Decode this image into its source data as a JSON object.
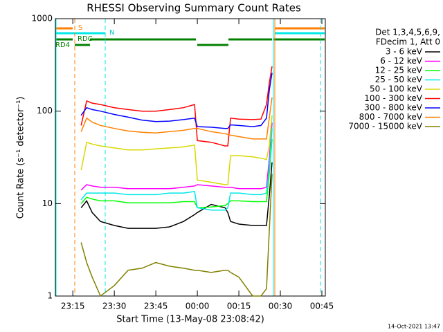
{
  "chart_data": {
    "type": "line",
    "title": "RHESSI Observing Summary Count Rates",
    "x_label": "Start Time (13-May-08 23:08:42)",
    "y_label": "Count Rate (s⁻¹ detector⁻¹)",
    "legend_title": [
      "Det 1,3,4,5,6,9,",
      "FDecim 1, Att 0"
    ],
    "flags": [
      "S",
      "N",
      "RDC",
      "RD4"
    ],
    "footer": "14-Oct-2021 13:47",
    "log_y": true,
    "xlim": [
      "23:08:42",
      "00:46:15"
    ],
    "xticks": [
      "23:15",
      "23:30",
      "23:45",
      "00:00",
      "00:15",
      "00:30",
      "00:45"
    ],
    "ylim": [
      1,
      1000
    ],
    "yticks": [
      1,
      10,
      100,
      1000
    ],
    "x": [
      "23:18",
      "23:20",
      "23:22",
      "23:25",
      "23:30",
      "23:35",
      "23:40",
      "23:45",
      "23:50",
      "23:55",
      "23:59",
      "00:00",
      "00:05",
      "00:10",
      "00:11",
      "00:12",
      "00:15",
      "00:20",
      "00:23",
      "00:25",
      "00:26",
      "00:27"
    ],
    "series": [
      {
        "name": "3 - 6 keV",
        "color": "#000000",
        "values": [
          9,
          10.7,
          8,
          6.4,
          5.8,
          5.4,
          5.4,
          5.4,
          5.6,
          6.4,
          7.6,
          8,
          9.8,
          9,
          8,
          6.4,
          6,
          5.8,
          5.8,
          5.8,
          12,
          28
        ]
      },
      {
        "name": "6 - 12 keV",
        "color": "#ff00ff",
        "values": [
          14,
          16,
          15.5,
          15,
          15,
          14.5,
          14.5,
          14.5,
          14.5,
          15,
          15.5,
          16,
          15.5,
          15,
          15,
          15,
          14.5,
          14.5,
          14.5,
          15,
          30,
          75
        ]
      },
      {
        "name": "12 - 25 keV",
        "color": "#00ff00",
        "values": [
          10,
          11.7,
          11.2,
          10.7,
          10.7,
          10.2,
          10.2,
          10.2,
          10.2,
          10.5,
          10.5,
          9,
          9.2,
          9.5,
          10,
          10.7,
          10.7,
          10.5,
          10.5,
          10.5,
          21,
          50
        ]
      },
      {
        "name": "25 - 50 keV",
        "color": "#00e8e8",
        "values": [
          11,
          13,
          13,
          13,
          13,
          12.5,
          12.5,
          12.5,
          13,
          13,
          13.5,
          9,
          8.5,
          8.5,
          9,
          13,
          13,
          12.5,
          12.5,
          13,
          24,
          65
        ]
      },
      {
        "name": "50 - 100 keV",
        "color": "#d8d800",
        "values": [
          23,
          46,
          44,
          42,
          40,
          38,
          38,
          39,
          40,
          41,
          43,
          18,
          17,
          16,
          16,
          33,
          33,
          32,
          31,
          30,
          42,
          90
        ]
      },
      {
        "name": "100 - 300 keV",
        "color": "#ff0000",
        "values": [
          70,
          129,
          122,
          118,
          109,
          104,
          100,
          100,
          104,
          109,
          118,
          48,
          46,
          42,
          42,
          84,
          82,
          81,
          82,
          118,
          200,
          305
        ]
      },
      {
        "name": "300 - 800 keV",
        "color": "#0000ff",
        "values": [
          90,
          109,
          104,
          100,
          92,
          86,
          80,
          77,
          78,
          81,
          84,
          68,
          67,
          65,
          65,
          71,
          70,
          68,
          70,
          84,
          167,
          260
        ]
      },
      {
        "name": "800 - 7000 keV",
        "color": "#ff8000",
        "values": [
          60,
          84,
          76,
          70,
          65,
          61,
          59,
          58,
          60,
          62,
          65,
          65,
          60,
          57,
          56,
          55,
          53,
          50,
          50,
          50,
          84,
          141
        ]
      },
      {
        "name": "7000 - 15000 keV",
        "color": "#808000",
        "values": [
          3.8,
          2.3,
          1.6,
          1,
          1.3,
          1.9,
          2,
          2.3,
          2.1,
          2,
          1.9,
          1.9,
          1.8,
          1.9,
          1.9,
          1.8,
          1.6,
          1,
          1,
          1.2,
          5,
          21
        ]
      }
    ]
  }
}
